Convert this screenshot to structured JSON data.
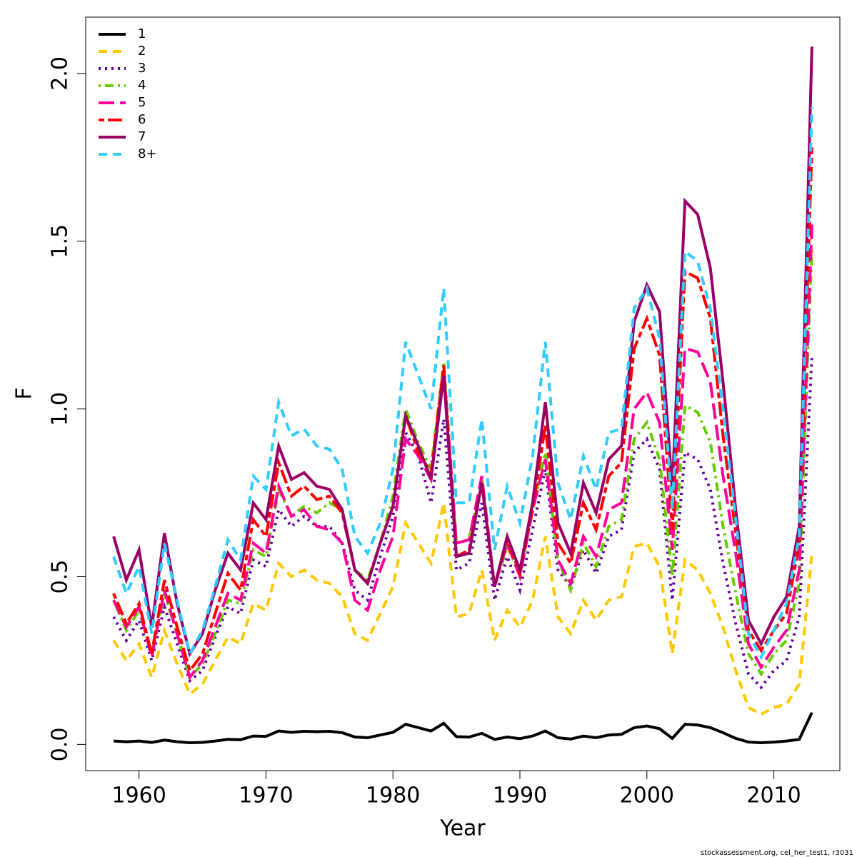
{
  "chart_data": {
    "type": "line",
    "xlabel": "Year",
    "ylabel": "F",
    "footer": "stockassessment.org, cel_her_test1, r3031",
    "x": [
      1958,
      1959,
      1960,
      1961,
      1962,
      1963,
      1964,
      1965,
      1966,
      1967,
      1968,
      1969,
      1970,
      1971,
      1972,
      1973,
      1974,
      1975,
      1976,
      1977,
      1978,
      1979,
      1980,
      1981,
      1982,
      1983,
      1984,
      1985,
      1986,
      1987,
      1988,
      1989,
      1990,
      1991,
      1992,
      1993,
      1994,
      1995,
      1996,
      1997,
      1998,
      1999,
      2000,
      2001,
      2002,
      2003,
      2004,
      2005,
      2006,
      2007,
      2008,
      2009,
      2010,
      2011,
      2012,
      2013
    ],
    "xlim": [
      1955.8,
      2015.2
    ],
    "xticks": [
      1960,
      1970,
      1980,
      1990,
      2000,
      2010
    ],
    "ylim": [
      -0.078,
      2.168
    ],
    "yticks": [
      {
        "value": 0,
        "label": "0.0"
      },
      0.5,
      {
        "value": 1,
        "label": "1.0"
      },
      1.5,
      {
        "value": 2,
        "label": "2.0"
      }
    ],
    "legend": "top-left",
    "series": [
      {
        "name": "1",
        "color": "#000000",
        "dash": "solid",
        "values": [
          0.01,
          0.008,
          0.01,
          0.006,
          0.013,
          0.008,
          0.005,
          0.006,
          0.01,
          0.015,
          0.014,
          0.025,
          0.024,
          0.04,
          0.036,
          0.039,
          0.038,
          0.039,
          0.035,
          0.022,
          0.02,
          0.028,
          0.036,
          0.06,
          0.05,
          0.04,
          0.063,
          0.023,
          0.022,
          0.033,
          0.015,
          0.022,
          0.017,
          0.025,
          0.04,
          0.02,
          0.016,
          0.025,
          0.02,
          0.028,
          0.03,
          0.05,
          0.055,
          0.047,
          0.018,
          0.06,
          0.058,
          0.05,
          0.035,
          0.018,
          0.007,
          0.005,
          0.007,
          0.01,
          0.015,
          0.095
        ]
      },
      {
        "name": "2",
        "color": "#ffc800",
        "dash": "dashed",
        "values": [
          0.31,
          0.25,
          0.3,
          0.2,
          0.34,
          0.24,
          0.15,
          0.18,
          0.25,
          0.32,
          0.3,
          0.42,
          0.4,
          0.54,
          0.5,
          0.52,
          0.49,
          0.48,
          0.44,
          0.33,
          0.31,
          0.39,
          0.47,
          0.66,
          0.6,
          0.54,
          0.72,
          0.38,
          0.39,
          0.52,
          0.31,
          0.4,
          0.35,
          0.43,
          0.62,
          0.38,
          0.33,
          0.43,
          0.37,
          0.43,
          0.44,
          0.59,
          0.6,
          0.53,
          0.27,
          0.55,
          0.52,
          0.45,
          0.35,
          0.22,
          0.11,
          0.09,
          0.11,
          0.12,
          0.18,
          0.57
        ]
      },
      {
        "name": "3",
        "color": "#660099",
        "dash": "dotted",
        "values": [
          0.38,
          0.31,
          0.37,
          0.25,
          0.41,
          0.3,
          0.19,
          0.22,
          0.32,
          0.41,
          0.39,
          0.55,
          0.53,
          0.7,
          0.65,
          0.68,
          0.65,
          0.65,
          0.6,
          0.46,
          0.43,
          0.56,
          0.68,
          0.93,
          0.86,
          0.72,
          0.97,
          0.52,
          0.54,
          0.72,
          0.43,
          0.56,
          0.46,
          0.64,
          0.82,
          0.52,
          0.47,
          0.58,
          0.51,
          0.62,
          0.64,
          0.87,
          0.91,
          0.82,
          0.43,
          0.87,
          0.85,
          0.76,
          0.54,
          0.36,
          0.21,
          0.17,
          0.22,
          0.25,
          0.38,
          1.16
        ]
      },
      {
        "name": "4",
        "color": "#66cc00",
        "dash": "dotdash",
        "values": [
          0.43,
          0.34,
          0.4,
          0.27,
          0.45,
          0.33,
          0.2,
          0.24,
          0.33,
          0.43,
          0.42,
          0.58,
          0.56,
          0.76,
          0.68,
          0.71,
          0.69,
          0.72,
          0.7,
          0.52,
          0.49,
          0.6,
          0.74,
          1.0,
          0.9,
          0.82,
          1.14,
          0.6,
          0.61,
          0.79,
          0.47,
          0.59,
          0.51,
          0.7,
          0.87,
          0.55,
          0.46,
          0.6,
          0.53,
          0.65,
          0.67,
          0.91,
          0.96,
          0.85,
          0.5,
          1.01,
          0.99,
          0.9,
          0.65,
          0.45,
          0.27,
          0.21,
          0.27,
          0.31,
          0.48,
          1.48
        ]
      },
      {
        "name": "5",
        "color": "#ff0099",
        "dash": "longdash",
        "values": [
          0.43,
          0.35,
          0.41,
          0.26,
          0.46,
          0.33,
          0.2,
          0.25,
          0.35,
          0.45,
          0.43,
          0.6,
          0.57,
          0.77,
          0.68,
          0.7,
          0.65,
          0.64,
          0.6,
          0.43,
          0.4,
          0.52,
          0.62,
          0.91,
          0.86,
          0.79,
          1.12,
          0.6,
          0.61,
          0.8,
          0.47,
          0.6,
          0.5,
          0.7,
          0.85,
          0.55,
          0.48,
          0.62,
          0.56,
          0.7,
          0.72,
          1.0,
          1.05,
          0.96,
          0.58,
          1.18,
          1.17,
          1.08,
          0.8,
          0.57,
          0.3,
          0.23,
          0.29,
          0.34,
          0.52,
          1.55
        ]
      },
      {
        "name": "6",
        "color": "#ff0000",
        "dash": "twodash",
        "values": [
          0.45,
          0.36,
          0.42,
          0.27,
          0.49,
          0.35,
          0.22,
          0.27,
          0.39,
          0.51,
          0.46,
          0.67,
          0.62,
          0.84,
          0.74,
          0.77,
          0.73,
          0.74,
          0.69,
          0.52,
          0.48,
          0.6,
          0.71,
          0.98,
          0.87,
          0.81,
          1.13,
          0.56,
          0.58,
          0.78,
          0.47,
          0.61,
          0.51,
          0.7,
          0.95,
          0.6,
          0.54,
          0.72,
          0.64,
          0.8,
          0.84,
          1.18,
          1.27,
          1.16,
          0.64,
          1.41,
          1.39,
          1.27,
          0.92,
          0.63,
          0.34,
          0.28,
          0.34,
          0.39,
          0.6,
          1.78
        ]
      },
      {
        "name": "7",
        "color": "#990066",
        "dash": "solid",
        "values": [
          0.62,
          0.49,
          0.58,
          0.35,
          0.63,
          0.42,
          0.27,
          0.33,
          0.46,
          0.57,
          0.52,
          0.72,
          0.67,
          0.89,
          0.79,
          0.81,
          0.77,
          0.76,
          0.7,
          0.52,
          0.48,
          0.6,
          0.71,
          0.98,
          0.89,
          0.79,
          1.1,
          0.56,
          0.57,
          0.78,
          0.47,
          0.62,
          0.52,
          0.72,
          1.02,
          0.66,
          0.57,
          0.78,
          0.69,
          0.85,
          0.89,
          1.26,
          1.37,
          1.29,
          0.76,
          1.62,
          1.58,
          1.42,
          1.08,
          0.7,
          0.37,
          0.3,
          0.38,
          0.44,
          0.65,
          2.08
        ]
      },
      {
        "name": "8+",
        "color": "#33ccff",
        "dash": "dashed",
        "values": [
          0.56,
          0.45,
          0.53,
          0.33,
          0.6,
          0.43,
          0.27,
          0.34,
          0.47,
          0.61,
          0.55,
          0.8,
          0.76,
          1.02,
          0.92,
          0.94,
          0.89,
          0.88,
          0.82,
          0.62,
          0.57,
          0.66,
          0.82,
          1.2,
          1.1,
          1.0,
          1.36,
          0.72,
          0.72,
          0.97,
          0.58,
          0.77,
          0.66,
          0.86,
          1.2,
          0.78,
          0.67,
          0.86,
          0.76,
          0.93,
          0.94,
          1.3,
          1.36,
          1.21,
          0.7,
          1.47,
          1.44,
          1.3,
          1.0,
          0.67,
          0.33,
          0.26,
          0.34,
          0.42,
          0.62,
          1.9
        ]
      }
    ]
  }
}
